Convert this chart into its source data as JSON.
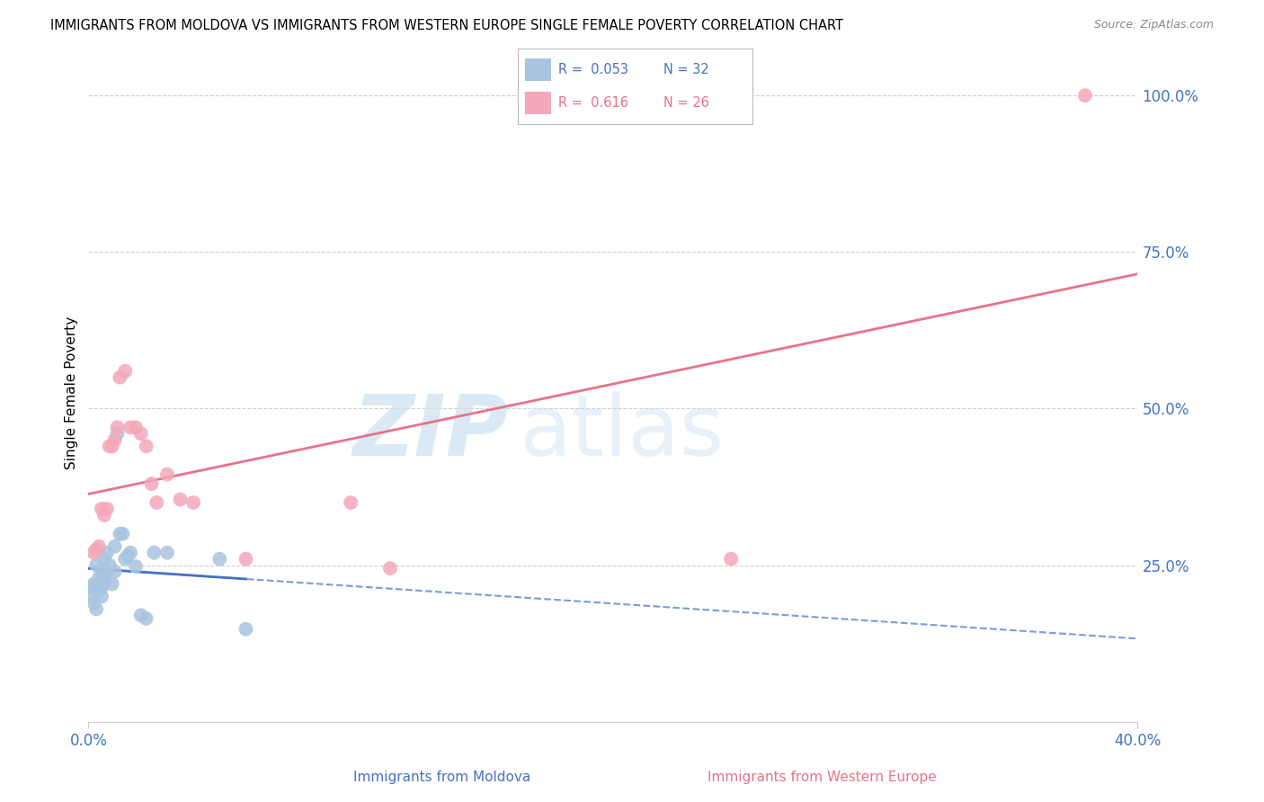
{
  "title": "IMMIGRANTS FROM MOLDOVA VS IMMIGRANTS FROM WESTERN EUROPE SINGLE FEMALE POVERTY CORRELATION CHART",
  "source": "Source: ZipAtlas.com",
  "xlabel_moldova": "Immigrants from Moldova",
  "xlabel_western": "Immigrants from Western Europe",
  "ylabel": "Single Female Poverty",
  "xlim": [
    0.0,
    0.4
  ],
  "ylim": [
    0.0,
    1.05
  ],
  "ytick_vals": [
    0.25,
    0.5,
    0.75,
    1.0
  ],
  "ytick_labels": [
    "25.0%",
    "50.0%",
    "75.0%",
    "100.0%"
  ],
  "color_moldova": "#a8c4e0",
  "color_western": "#f4a7b9",
  "color_moldova_line": "#4472c4",
  "color_western_line": "#e8728a",
  "color_blue": "#4472c4",
  "color_pink": "#e8728a",
  "moldova_x": [
    0.001,
    0.001,
    0.002,
    0.002,
    0.003,
    0.003,
    0.004,
    0.004,
    0.005,
    0.005,
    0.005,
    0.006,
    0.006,
    0.007,
    0.007,
    0.008,
    0.009,
    0.01,
    0.01,
    0.011,
    0.012,
    0.013,
    0.014,
    0.015,
    0.016,
    0.018,
    0.02,
    0.022,
    0.025,
    0.03,
    0.05,
    0.06
  ],
  "moldova_y": [
    0.2,
    0.215,
    0.19,
    0.22,
    0.18,
    0.25,
    0.21,
    0.23,
    0.2,
    0.24,
    0.215,
    0.26,
    0.225,
    0.27,
    0.24,
    0.25,
    0.22,
    0.28,
    0.24,
    0.46,
    0.3,
    0.3,
    0.26,
    0.265,
    0.27,
    0.248,
    0.17,
    0.165,
    0.27,
    0.27,
    0.26,
    0.148
  ],
  "western_x": [
    0.002,
    0.003,
    0.004,
    0.005,
    0.006,
    0.007,
    0.008,
    0.009,
    0.01,
    0.011,
    0.012,
    0.014,
    0.016,
    0.018,
    0.02,
    0.022,
    0.024,
    0.026,
    0.03,
    0.035,
    0.04,
    0.06,
    0.1,
    0.115,
    0.245,
    0.38
  ],
  "western_y": [
    0.27,
    0.275,
    0.28,
    0.34,
    0.33,
    0.34,
    0.44,
    0.44,
    0.45,
    0.47,
    0.55,
    0.56,
    0.47,
    0.47,
    0.46,
    0.44,
    0.38,
    0.35,
    0.395,
    0.355,
    0.35,
    0.26,
    0.35,
    0.245,
    0.26,
    1.0
  ]
}
